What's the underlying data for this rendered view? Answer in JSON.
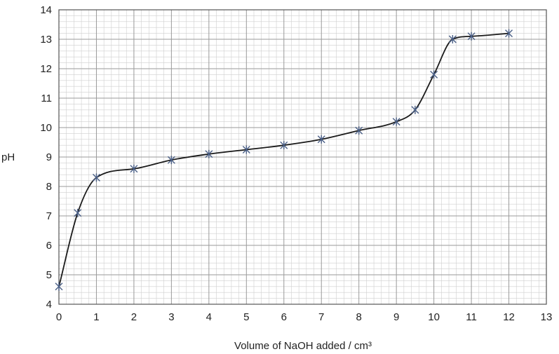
{
  "chart_data": {
    "type": "line",
    "title": "",
    "xlabel": "Volume of NaOH added / cm³",
    "ylabel": "pH",
    "xlim": [
      0,
      13
    ],
    "ylim": [
      4,
      14
    ],
    "x_ticks": [
      0,
      1,
      2,
      3,
      4,
      5,
      6,
      7,
      8,
      9,
      10,
      11,
      12,
      13
    ],
    "y_ticks": [
      4,
      5,
      6,
      7,
      8,
      9,
      10,
      11,
      12,
      13,
      14
    ],
    "minor_divisions": 5,
    "grid": true,
    "legend": "none",
    "marker": "asterisk",
    "series": [
      {
        "x": [
          0,
          0.5,
          1,
          2,
          3,
          4,
          5,
          6,
          7,
          8,
          9,
          9.5,
          10,
          10.5,
          11,
          12
        ],
        "y": [
          4.6,
          7.1,
          8.3,
          8.6,
          8.9,
          9.1,
          9.25,
          9.4,
          9.6,
          9.9,
          10.2,
          10.6,
          11.8,
          13.0,
          13.1,
          13.2
        ]
      }
    ],
    "colors": {
      "line": "#1a1a1a",
      "marker": "#4a5f86",
      "major_grid": "#9a9a9a",
      "minor_grid": "#cfcfcf"
    }
  }
}
